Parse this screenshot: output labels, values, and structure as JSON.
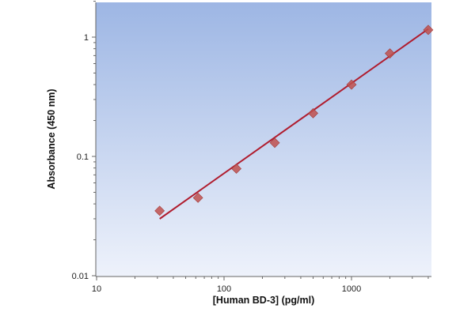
{
  "chart_data": {
    "type": "scatter",
    "xlabel": "[Human BD-3] (pg/ml)",
    "ylabel": "Absorbance (450 nm)",
    "xscale": "log",
    "yscale": "log",
    "xlim": [
      10,
      4500
    ],
    "ylim": [
      0.01,
      2.1
    ],
    "grid": false,
    "legend": "none",
    "x_ticks": [
      10,
      100,
      1000
    ],
    "x_tick_labels": [
      "10",
      "100",
      "1000"
    ],
    "y_ticks": [
      0.01,
      0.1,
      1
    ],
    "y_tick_labels": [
      "0.01",
      "0.1",
      "1"
    ],
    "series": [
      {
        "kind": "points",
        "marker": "diamond",
        "color": "#c0504d",
        "x": [
          31.25,
          62.5,
          125,
          250,
          500,
          1000,
          2000,
          4000
        ],
        "y": [
          0.035,
          0.045,
          0.079,
          0.13,
          0.23,
          0.4,
          0.73,
          1.15
        ]
      },
      {
        "kind": "fit-line",
        "color": "#b01c2e",
        "x": [
          31.25,
          4000
        ],
        "y": [
          0.03,
          1.17
        ]
      }
    ],
    "colors": {
      "plot_bg_top": "#9db6e4",
      "plot_bg_bottom": "#eef2fb",
      "axis": "#666666"
    }
  }
}
